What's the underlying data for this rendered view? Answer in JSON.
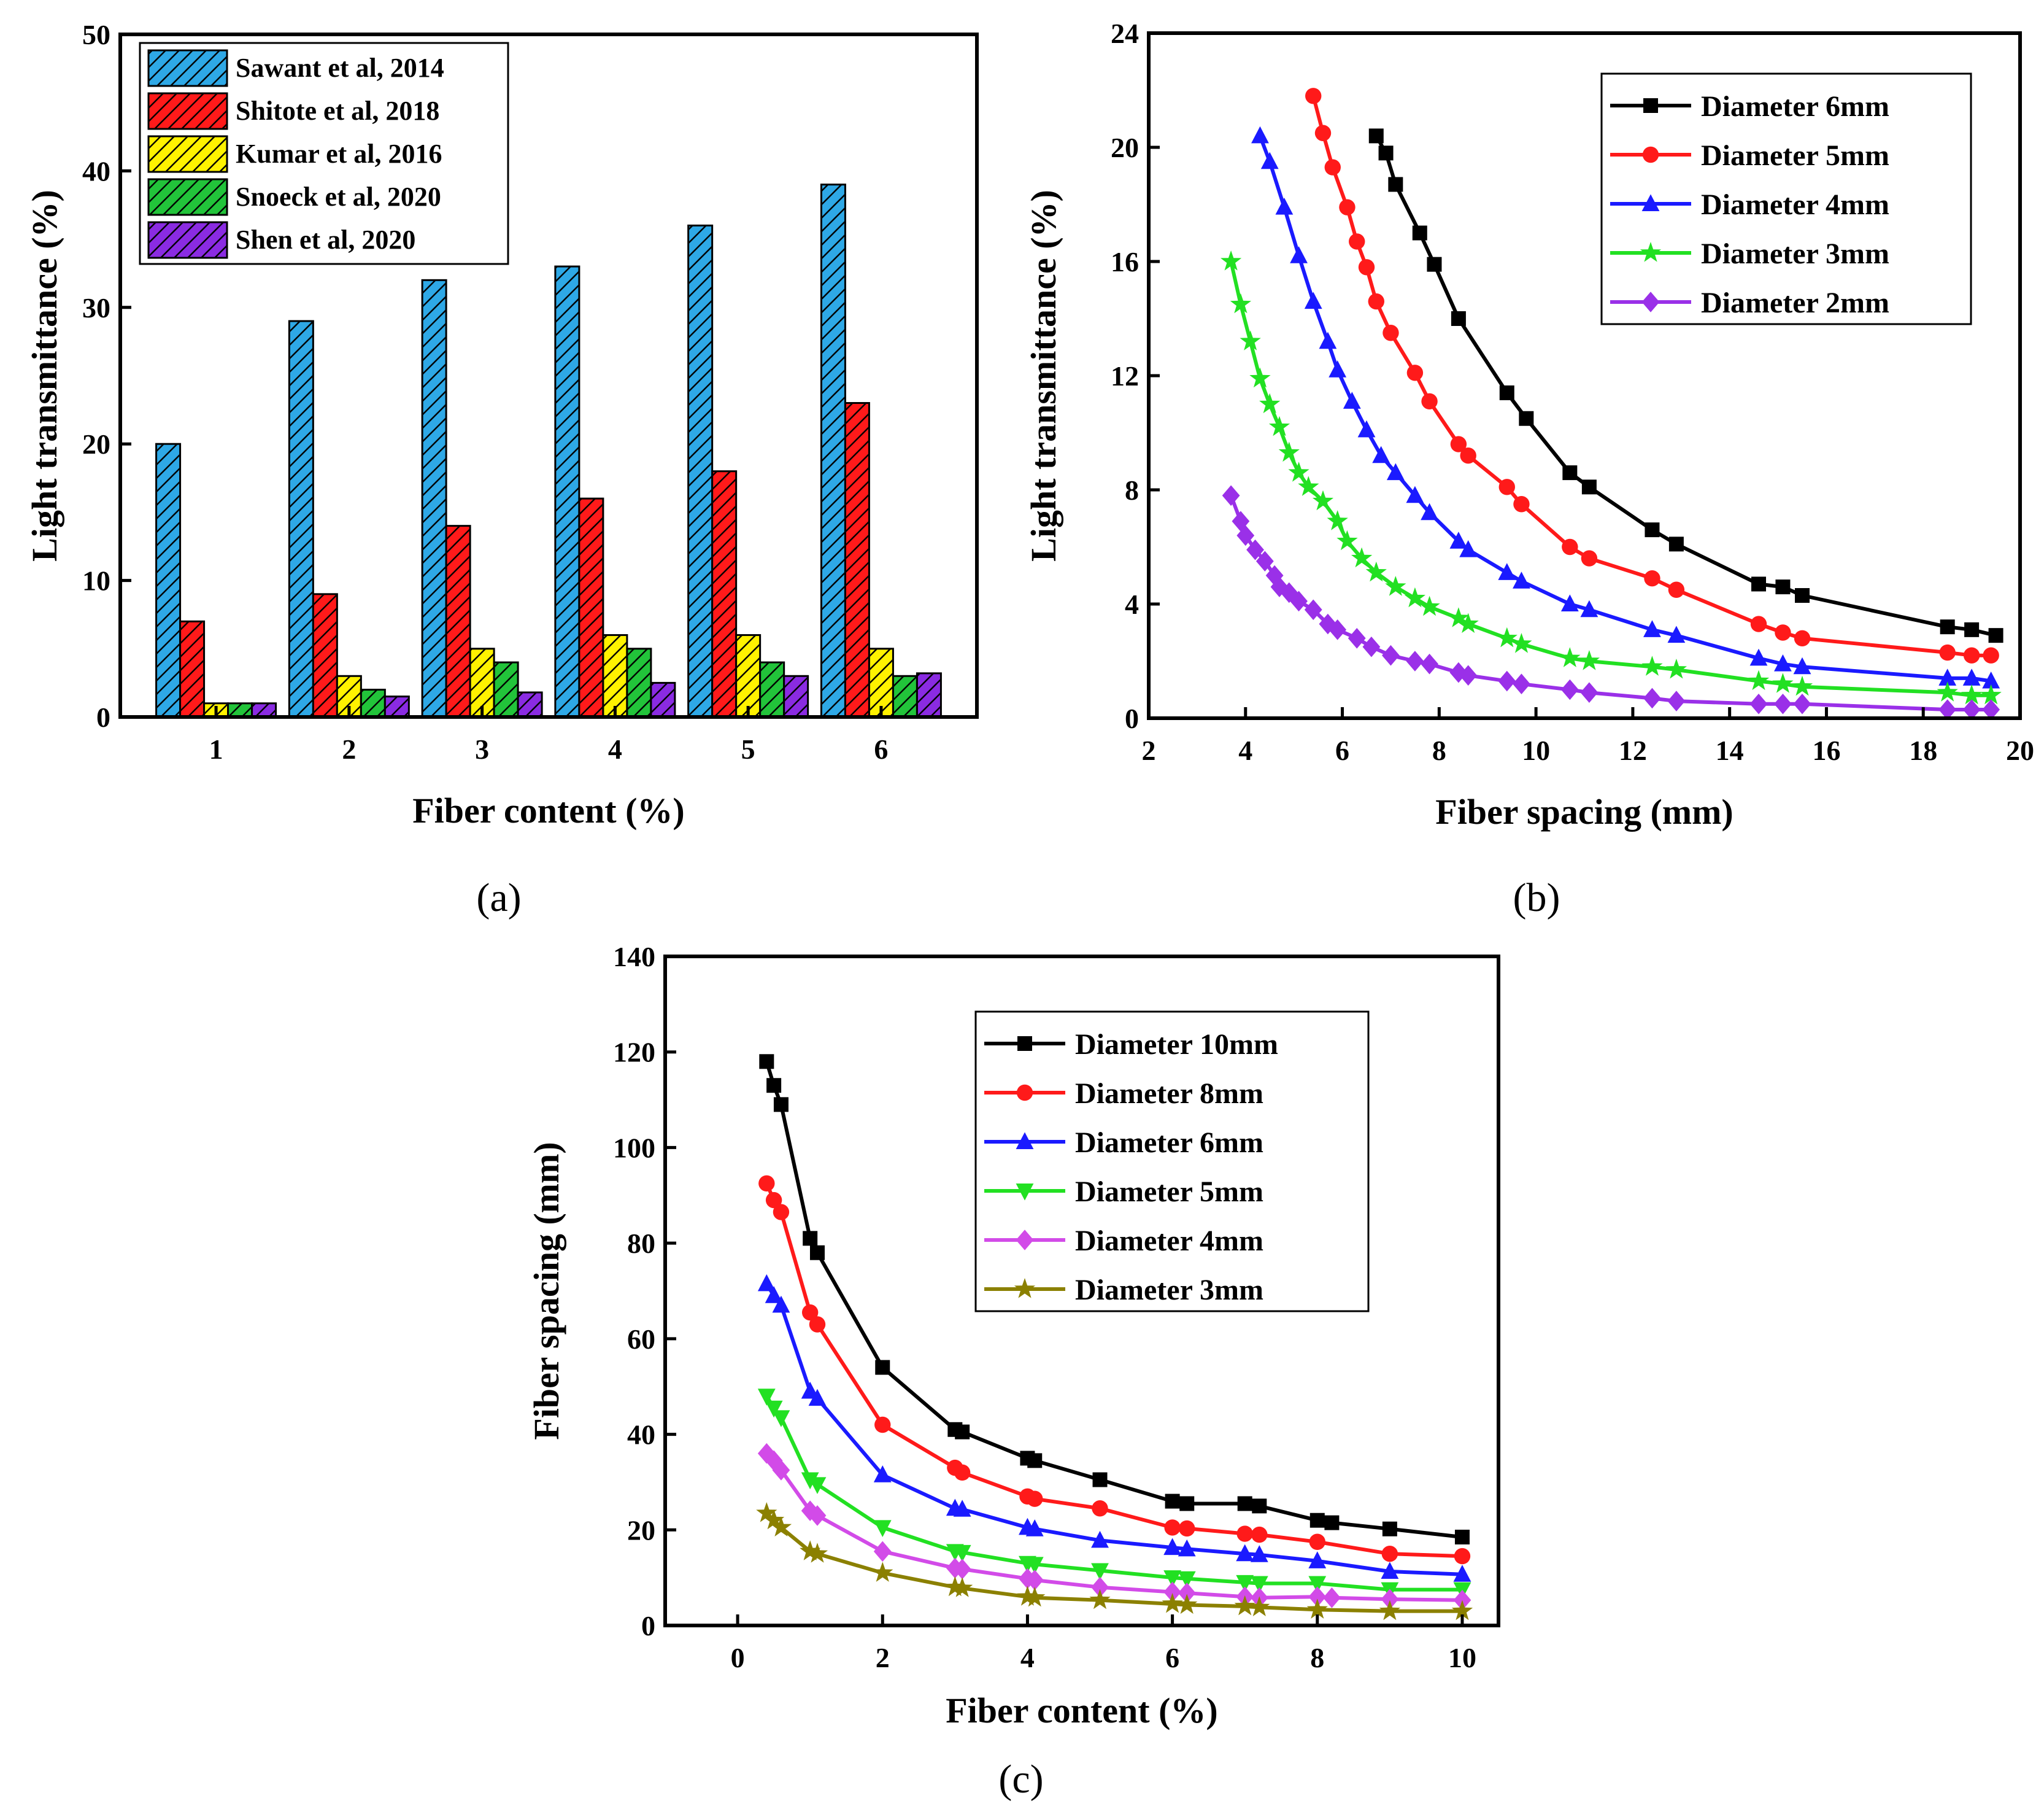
{
  "chart_data": [
    {
      "id": "a",
      "type": "bar",
      "panel_label": "(a)",
      "xlabel": "Fiber content (%)",
      "ylabel": "Light transmittance (%)",
      "ylim": [
        0,
        50
      ],
      "yticks": [
        "0",
        "10",
        "20",
        "30",
        "40",
        "50"
      ],
      "categories": [
        "1",
        "2",
        "3",
        "4",
        "5",
        "6"
      ],
      "legend_position": "top-left",
      "series": [
        {
          "name": "Sawant et al, 2014",
          "color": "#2EA8E6",
          "values": [
            20,
            29,
            32,
            33,
            36,
            39
          ]
        },
        {
          "name": "Shitote et al, 2018",
          "color": "#FF1A1A",
          "values": [
            7,
            9,
            14,
            16,
            18,
            23
          ]
        },
        {
          "name": "Kumar et al, 2016",
          "color": "#FFF200",
          "values": [
            1,
            3,
            5,
            6,
            6,
            5
          ]
        },
        {
          "name": "Snoeck et al, 2020",
          "color": "#22C43A",
          "values": [
            1,
            2,
            4,
            5,
            4,
            3
          ]
        },
        {
          "name": "Shen et al, 2020",
          "color": "#8A2BE2",
          "values": [
            1,
            1.5,
            1.8,
            2.5,
            3,
            3.2
          ]
        }
      ]
    },
    {
      "id": "b",
      "type": "line",
      "panel_label": "(b)",
      "xlabel": "Fiber spacing (mm)",
      "ylabel": "Light transmittance (%)",
      "xlim": [
        2,
        20
      ],
      "ylim": [
        0,
        24
      ],
      "xticks": [
        "2",
        "4",
        "6",
        "8",
        "10",
        "12",
        "14",
        "16",
        "18",
        "20"
      ],
      "yticks": [
        "0",
        "4",
        "8",
        "12",
        "16",
        "20",
        "24"
      ],
      "legend_position": "top-right",
      "series": [
        {
          "name": "Diameter 6mm",
          "color": "#000000",
          "marker": "square",
          "x": [
            6.7,
            6.9,
            7.1,
            7.6,
            7.9,
            8.4,
            9.4,
            9.8,
            10.7,
            11.1,
            12.4,
            12.9,
            14.6,
            15.1,
            15.5,
            18.5,
            19.0,
            19.5
          ],
          "y": [
            20.4,
            19.8,
            18.7,
            17.0,
            15.9,
            14.0,
            11.4,
            10.5,
            8.6,
            8.1,
            6.6,
            6.1,
            4.7,
            4.6,
            4.3,
            3.2,
            3.1,
            2.9
          ]
        },
        {
          "name": "Diameter 5mm",
          "color": "#FF1A1A",
          "marker": "circle",
          "x": [
            5.4,
            5.6,
            5.8,
            6.1,
            6.3,
            6.5,
            6.7,
            7.0,
            7.5,
            7.8,
            8.4,
            8.6,
            9.4,
            9.7,
            10.7,
            11.1,
            12.4,
            12.9,
            14.6,
            15.1,
            15.5,
            18.5,
            19.0,
            19.4
          ],
          "y": [
            21.8,
            20.5,
            19.3,
            17.9,
            16.7,
            15.8,
            14.6,
            13.5,
            12.1,
            11.1,
            9.6,
            9.2,
            8.1,
            7.5,
            6.0,
            5.6,
            4.9,
            4.5,
            3.3,
            3.0,
            2.8,
            2.3,
            2.2,
            2.2
          ]
        },
        {
          "name": "Diameter 4mm",
          "color": "#1A1AFF",
          "marker": "triangle",
          "x": [
            4.3,
            4.5,
            4.8,
            5.1,
            5.4,
            5.7,
            5.9,
            6.2,
            6.5,
            6.8,
            7.1,
            7.5,
            7.8,
            8.4,
            8.6,
            9.4,
            9.7,
            10.7,
            11.1,
            12.4,
            12.9,
            14.6,
            15.1,
            15.5,
            18.5,
            19.0,
            19.4
          ],
          "y": [
            20.4,
            19.5,
            17.9,
            16.2,
            14.6,
            13.2,
            12.2,
            11.1,
            10.1,
            9.2,
            8.6,
            7.8,
            7.2,
            6.2,
            5.9,
            5.1,
            4.8,
            4.0,
            3.8,
            3.1,
            2.9,
            2.1,
            1.9,
            1.8,
            1.4,
            1.4,
            1.3
          ]
        },
        {
          "name": "Diameter 3mm",
          "color": "#22E022",
          "marker": "star",
          "x": [
            3.7,
            3.9,
            4.1,
            4.3,
            4.5,
            4.7,
            4.9,
            5.1,
            5.3,
            5.6,
            5.9,
            6.1,
            6.4,
            6.7,
            7.1,
            7.5,
            7.8,
            8.4,
            8.6,
            9.4,
            9.7,
            10.7,
            11.1,
            12.4,
            12.9,
            14.6,
            15.1,
            15.5,
            18.5,
            19.0,
            19.4
          ],
          "y": [
            16.0,
            14.5,
            13.2,
            11.9,
            11.0,
            10.2,
            9.3,
            8.6,
            8.1,
            7.6,
            6.9,
            6.2,
            5.6,
            5.1,
            4.6,
            4.2,
            3.9,
            3.5,
            3.3,
            2.8,
            2.6,
            2.1,
            2.0,
            1.8,
            1.7,
            1.3,
            1.2,
            1.1,
            0.9,
            0.8,
            0.8
          ]
        },
        {
          "name": "Diameter 2mm",
          "color": "#9A30E8",
          "marker": "diamond",
          "x": [
            3.7,
            3.9,
            4.0,
            4.2,
            4.4,
            4.6,
            4.7,
            4.9,
            5.1,
            5.4,
            5.7,
            5.9,
            6.3,
            6.6,
            7.0,
            7.5,
            7.8,
            8.4,
            8.6,
            9.4,
            9.7,
            10.7,
            11.1,
            12.4,
            12.9,
            14.6,
            15.1,
            15.5,
            18.5,
            19.0,
            19.4
          ],
          "y": [
            7.8,
            6.9,
            6.4,
            5.9,
            5.5,
            5.0,
            4.6,
            4.4,
            4.1,
            3.8,
            3.3,
            3.1,
            2.8,
            2.5,
            2.2,
            2.0,
            1.9,
            1.6,
            1.5,
            1.3,
            1.2,
            1.0,
            0.9,
            0.7,
            0.6,
            0.5,
            0.5,
            0.5,
            0.3,
            0.3,
            0.3
          ]
        }
      ]
    },
    {
      "id": "c",
      "type": "line",
      "panel_label": "(c)",
      "xlabel": "Fiber content (%)",
      "ylabel": "Fiber spacing (mm)",
      "xlim": [
        -1,
        10.5
      ],
      "ylim": [
        0,
        140
      ],
      "xticks": [
        "0",
        "2",
        "4",
        "6",
        "8",
        "10"
      ],
      "yticks": [
        "0",
        "20",
        "40",
        "60",
        "80",
        "100",
        "120",
        "140"
      ],
      "legend_position": "top-right",
      "series": [
        {
          "name": "Diameter 10mm",
          "color": "#000000",
          "marker": "square",
          "x": [
            0.4,
            0.5,
            0.6,
            1.0,
            1.1,
            2.0,
            3.0,
            3.1,
            4.0,
            4.1,
            5.0,
            6.0,
            6.2,
            7.0,
            7.2,
            8.0,
            8.2,
            9.0,
            10.0
          ],
          "y": [
            118,
            113,
            109,
            81,
            78,
            54,
            41,
            40.5,
            35,
            34.5,
            30.5,
            26,
            25.5,
            25.5,
            25,
            22,
            21.5,
            20.2,
            18.5
          ]
        },
        {
          "name": "Diameter 8mm",
          "color": "#FF1A1A",
          "marker": "circle",
          "x": [
            0.4,
            0.5,
            0.6,
            1.0,
            1.1,
            2.0,
            3.0,
            3.1,
            4.0,
            4.1,
            5.0,
            6.0,
            6.2,
            7.0,
            7.2,
            8.0,
            9.0,
            10.0
          ],
          "y": [
            92.5,
            89,
            86.5,
            65.5,
            63,
            42,
            33,
            32,
            27,
            26.5,
            24.5,
            20.5,
            20.3,
            19.2,
            19,
            17.5,
            15,
            14.5
          ]
        },
        {
          "name": "Diameter 6mm",
          "color": "#1A1AFF",
          "marker": "triangle",
          "x": [
            0.4,
            0.5,
            0.6,
            1.0,
            1.1,
            2.0,
            3.0,
            3.1,
            4.0,
            4.1,
            5.0,
            6.0,
            6.2,
            7.0,
            7.2,
            8.0,
            9.0,
            10.0
          ],
          "y": [
            71.5,
            69,
            67,
            49,
            47.5,
            31.5,
            24.5,
            24.3,
            20.5,
            20.2,
            17.8,
            16.3,
            16,
            15,
            14.8,
            13.5,
            11.3,
            10.7
          ]
        },
        {
          "name": "Diameter 5mm",
          "color": "#22E022",
          "marker": "triangle-down",
          "x": [
            0.4,
            0.5,
            0.6,
            1.0,
            1.1,
            2.0,
            3.0,
            3.1,
            4.0,
            4.1,
            5.0,
            6.0,
            6.2,
            7.0,
            7.2,
            8.0,
            9.0,
            10.0
          ],
          "y": [
            48,
            45.5,
            43.5,
            30.5,
            29.5,
            20.5,
            15.5,
            15.3,
            13,
            12.8,
            11.5,
            10,
            9.8,
            9,
            8.8,
            8.8,
            7.5,
            7.5
          ]
        },
        {
          "name": "Diameter 4mm",
          "color": "#D24BE8",
          "marker": "diamond",
          "x": [
            0.4,
            0.5,
            0.6,
            1.0,
            1.1,
            2.0,
            3.0,
            3.1,
            4.0,
            4.1,
            5.0,
            6.0,
            6.2,
            7.0,
            7.2,
            8.0,
            8.2,
            9.0,
            10.0
          ],
          "y": [
            36,
            34.5,
            32.5,
            24,
            23,
            15.5,
            12,
            11.8,
            9.8,
            9.5,
            8,
            7,
            6.8,
            6,
            5.8,
            6,
            5.8,
            5.5,
            5.3
          ]
        },
        {
          "name": "Diameter 3mm",
          "color": "#8B8000",
          "marker": "star",
          "x": [
            0.4,
            0.5,
            0.6,
            1.0,
            1.1,
            2.0,
            3.0,
            3.1,
            4.0,
            4.1,
            5.0,
            6.0,
            6.2,
            7.0,
            7.2,
            8.0,
            9.0,
            10.0
          ],
          "y": [
            23.5,
            22,
            20.5,
            15.5,
            15,
            11,
            8,
            7.8,
            6,
            5.8,
            5.3,
            4.5,
            4.3,
            4,
            3.8,
            3.3,
            3,
            3
          ]
        }
      ]
    }
  ]
}
